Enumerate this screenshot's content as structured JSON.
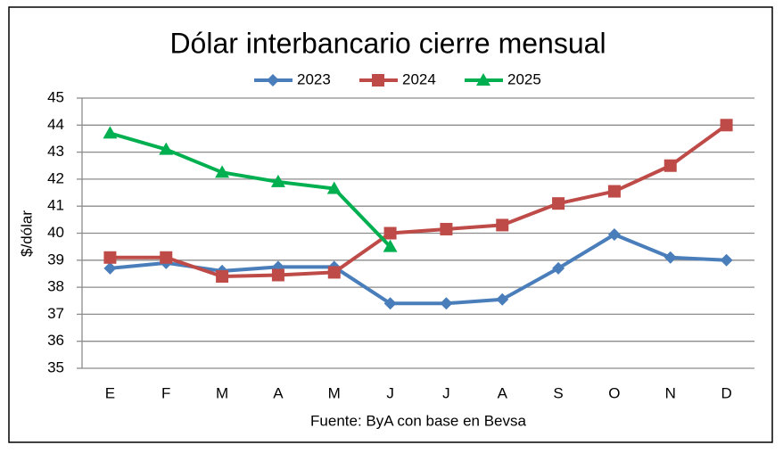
{
  "chart_data": {
    "type": "line",
    "title": "Dólar interbancario cierre mensual",
    "y_label": "$/dólar",
    "source": "Fuente: ByA con base en Bevsa",
    "categories": [
      "E",
      "F",
      "M",
      "A",
      "M",
      "J",
      "J",
      "A",
      "S",
      "O",
      "N",
      "D"
    ],
    "series": [
      {
        "name": "2023",
        "color": "#4a7ebb",
        "marker": "diamond",
        "values": [
          38.7,
          38.9,
          38.6,
          38.75,
          38.75,
          37.4,
          37.4,
          37.55,
          38.7,
          39.95,
          39.1,
          39.0
        ]
      },
      {
        "name": "2024",
        "color": "#be4b48",
        "marker": "square",
        "values": [
          39.1,
          39.1,
          38.4,
          38.45,
          38.55,
          40.0,
          40.15,
          40.3,
          41.1,
          41.55,
          42.5,
          44.0
        ]
      },
      {
        "name": "2025",
        "color": "#00b050",
        "marker": "triangle",
        "values": [
          43.7,
          43.1,
          42.25,
          41.9,
          41.65,
          39.5,
          null,
          null,
          null,
          null,
          null,
          null
        ]
      }
    ],
    "ylim": [
      35,
      45
    ],
    "yticks": [
      35,
      36,
      37,
      38,
      39,
      40,
      41,
      42,
      43,
      44,
      45
    ],
    "grid": true,
    "legend": "top"
  }
}
